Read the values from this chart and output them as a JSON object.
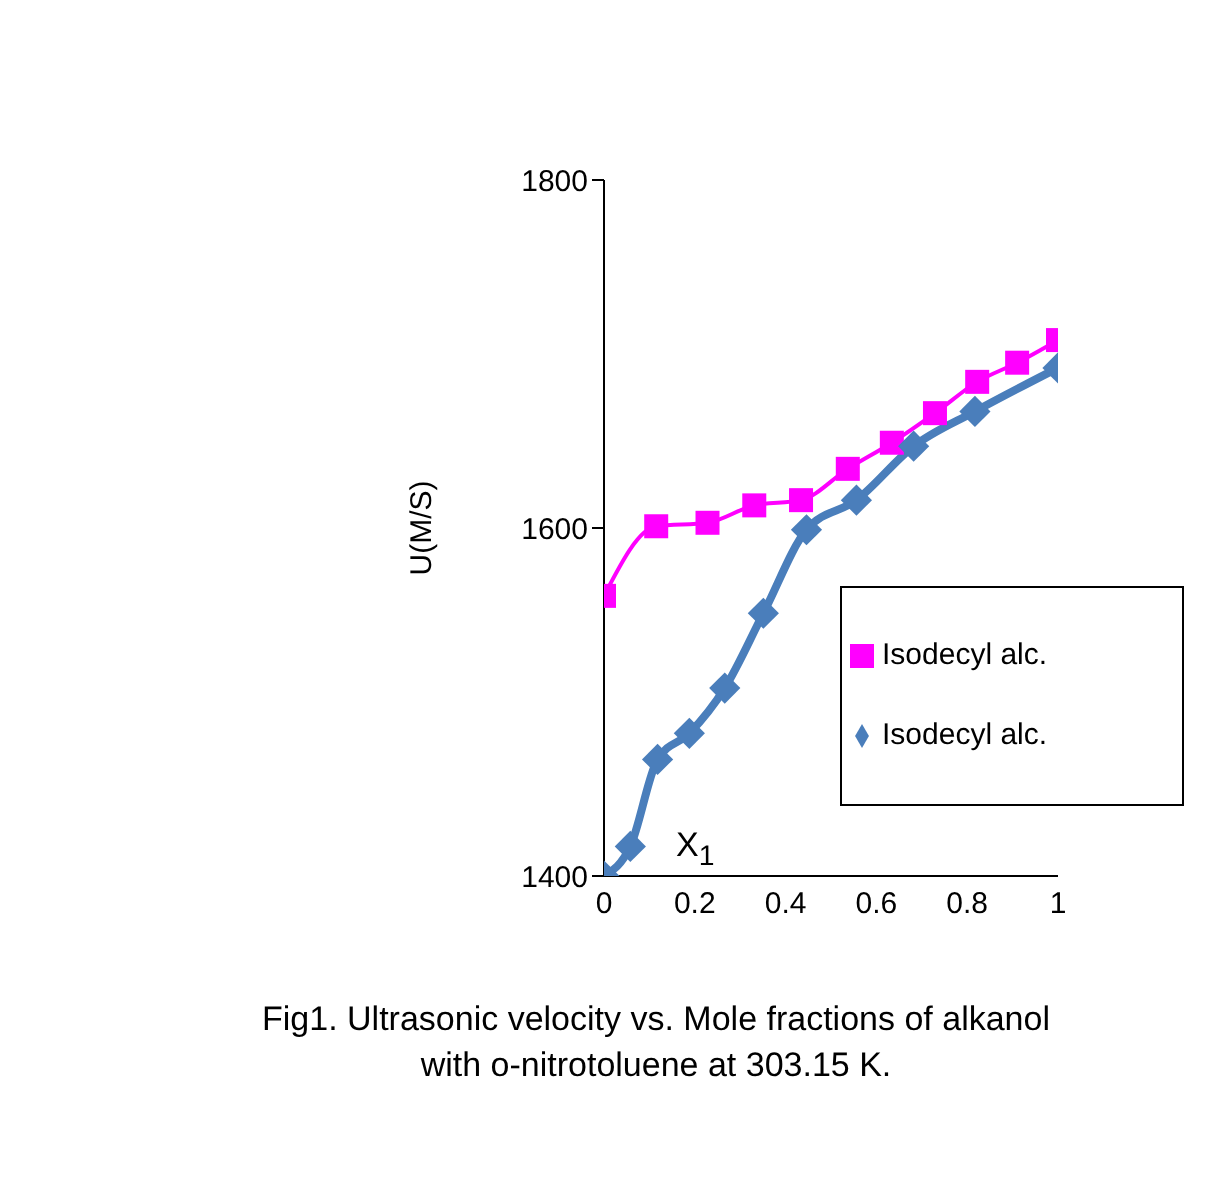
{
  "chart_data": {
    "type": "line",
    "title": "Fig1. Ultrasonic velocity  vs. Mole fractions of alkanol with o-nitrotoluene at  303.15 K.",
    "xlabel": "X$_{1}$",
    "ylabel": "U(M/S)",
    "xlim": [
      0,
      1
    ],
    "xticks": [
      0,
      0.2,
      0.4,
      0.6,
      0.8,
      1
    ],
    "ylim": [
      1400,
      1800
    ],
    "yticks": [
      1400,
      1600,
      1800
    ],
    "grid": false,
    "legend": "right",
    "line_style": "solid",
    "series": [
      {
        "name": "Isodecyl alc.",
        "color": "#ff00ff",
        "marker": "square",
        "x": [
          0,
          0.115,
          0.228,
          0.331,
          0.434,
          0.537,
          0.634,
          0.729,
          0.822,
          0.91,
          1
        ],
        "values": [
          1561,
          1601,
          1603,
          1613,
          1616,
          1634,
          1649,
          1666,
          1684,
          1695,
          1708
        ]
      },
      {
        "name": "Isodecyl alc.",
        "color": "#4a7ebb",
        "marker": "diamond",
        "x": [
          0,
          0.058,
          0.118,
          0.188,
          0.266,
          0.351,
          0.446,
          0.556,
          0.682,
          0.817,
          1
        ],
        "values": [
          1400,
          1417,
          1467,
          1482,
          1508,
          1551,
          1599,
          1616,
          1647,
          1667,
          1692
        ]
      }
    ]
  }
}
